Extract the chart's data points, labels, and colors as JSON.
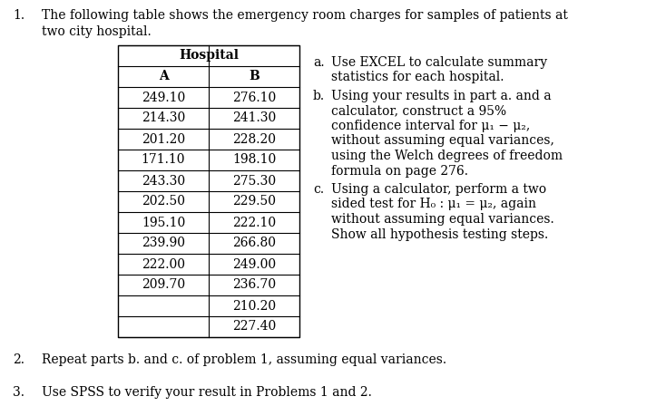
{
  "col_A": [
    "249.10",
    "214.30",
    "201.20",
    "171.10",
    "243.30",
    "202.50",
    "195.10",
    "239.90",
    "222.00",
    "209.70",
    "",
    ""
  ],
  "col_B": [
    "276.10",
    "241.30",
    "228.20",
    "198.10",
    "275.30",
    "229.50",
    "222.10",
    "266.80",
    "249.00",
    "236.70",
    "210.20",
    "227.40"
  ],
  "bg_color": "#ffffff",
  "text_color": "#000000",
  "font_size": 10.0
}
